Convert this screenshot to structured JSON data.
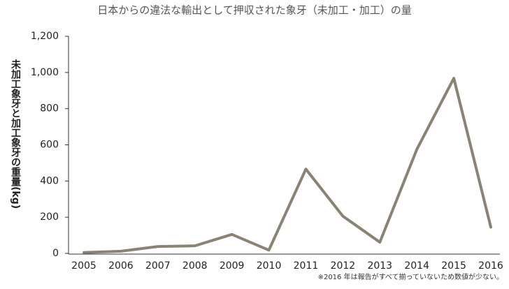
{
  "chart_data": {
    "type": "line",
    "title": "日本からの違法な輸出として押収された象牙（未加工・加工）の量",
    "y_label": "未加工象牙と加工象牙の重量(kg)",
    "note": "※2016 年は報告がすべて揃っていないため数値が少ない。",
    "categories": [
      "2005",
      "2006",
      "2007",
      "2008",
      "2009",
      "2010",
      "2011",
      "2012",
      "2013",
      "2014",
      "2015",
      "2016"
    ],
    "values": [
      5,
      12,
      38,
      42,
      105,
      18,
      466,
      206,
      62,
      575,
      968,
      145
    ],
    "color": "#8a8273",
    "ylim": [
      0,
      1200
    ],
    "yticks": [
      0,
      200,
      400,
      600,
      800,
      {
        "value": 1000,
        "label": "1,000"
      },
      {
        "value": 1200,
        "label": "1,200"
      }
    ]
  }
}
